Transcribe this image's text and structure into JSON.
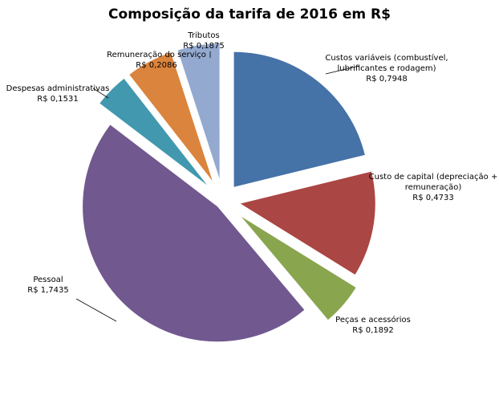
{
  "chart_data": {
    "type": "pie",
    "title": "Composição da tarifa de 2016 em R$",
    "exploded": true,
    "start": "top",
    "direction": "clockwise",
    "slices": [
      {
        "label": "Custos variáveis (combustível, lubrificantes e rodagem)",
        "label_lines": [
          "Custos variáveis (combustível,",
          "lubrificantes e rodagem)"
        ],
        "value": 0.7948,
        "value_label": "R$ 0,7948",
        "color": "#4572A7"
      },
      {
        "label": "Custo de capital (depreciação + remuneração)",
        "label_lines": [
          "Custo de capital (depreciação +",
          "remuneração)"
        ],
        "value": 0.4733,
        "value_label": "R$ 0,4733",
        "color": "#AA4643"
      },
      {
        "label": "Peças e acessórios",
        "label_lines": [
          "Peças e acessórios"
        ],
        "value": 0.1892,
        "value_label": "R$ 0,1892",
        "color": "#89A54E"
      },
      {
        "label": "Pessoal",
        "label_lines": [
          "Pessoal"
        ],
        "value": 1.7435,
        "value_label": "R$ 1,7435",
        "color": "#71588F"
      },
      {
        "label": "Despesas administrativas",
        "label_lines": [
          "Despesas administrativas"
        ],
        "value": 0.1531,
        "value_label": "R$ 0,1531",
        "color": "#4198AF"
      },
      {
        "label": "Remuneração do serviço",
        "label_lines": [
          "Remuneração do serviço"
        ],
        "value": 0.2086,
        "value_label": "R$ 0,2086",
        "color": "#DB843D"
      },
      {
        "label": "Tributos",
        "label_lines": [
          "Tributos"
        ],
        "value": 0.1875,
        "value_label": "R$ 0,1875",
        "color": "#93A9CF"
      }
    ]
  }
}
